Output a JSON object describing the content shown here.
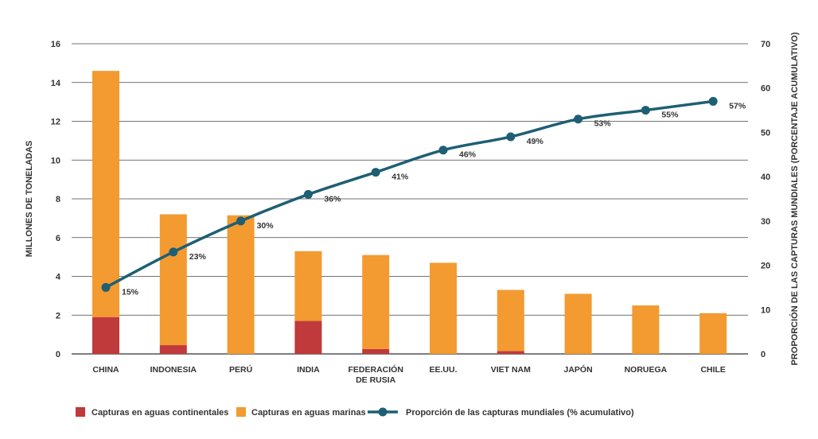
{
  "chart_data": {
    "type": "bar",
    "categories": [
      [
        "CHINA"
      ],
      [
        "INDONESIA"
      ],
      [
        "PERÚ"
      ],
      [
        "INDIA"
      ],
      [
        "FEDERACIÓN",
        "DE RUSIA"
      ],
      [
        "EE.UU."
      ],
      [
        "VIET NAM"
      ],
      [
        "JAPÓN"
      ],
      [
        "NORUEGA"
      ],
      [
        "CHILE"
      ]
    ],
    "series": [
      {
        "name": "Capturas en aguas continentales",
        "kind": "bar",
        "stack": "a",
        "axis": "left",
        "color": "#c0393b",
        "values": [
          1.9,
          0.45,
          0.0,
          1.7,
          0.25,
          0.0,
          0.15,
          0.0,
          0.0,
          0.0
        ]
      },
      {
        "name": "Capturas en aguas marinas",
        "kind": "bar",
        "stack": "a",
        "axis": "left",
        "color": "#f39a30",
        "values": [
          12.7,
          6.75,
          7.15,
          3.6,
          4.85,
          4.7,
          3.15,
          3.1,
          2.5,
          2.1
        ]
      },
      {
        "name": "Proporción de las capturas mundiales (% acumulativo)",
        "kind": "line",
        "axis": "right",
        "color": "#1e5f74",
        "values": [
          15,
          23,
          30,
          36,
          41,
          46,
          49,
          53,
          55,
          57
        ],
        "labels": [
          "15%",
          "23%",
          "30%",
          "36%",
          "41%",
          "46%",
          "49%",
          "53%",
          "55%",
          "57%"
        ]
      }
    ],
    "ylabel": "MILLONES DE TONELADAS",
    "ylim": [
      0,
      16
    ],
    "yticks": [
      "0",
      "2",
      "4",
      "6",
      "8",
      "10",
      "12",
      "14",
      "16"
    ],
    "y2label": "PROPORCIÓN DE LAS CAPTURAS MUNDIALES (PORCENTAJE ACUMULATIVO)",
    "y2lim": [
      0,
      70
    ],
    "y2ticks": [
      "0",
      "10",
      "20",
      "30",
      "40",
      "50",
      "60",
      "70"
    ],
    "grid": true,
    "legend_position": "bottom-left"
  }
}
